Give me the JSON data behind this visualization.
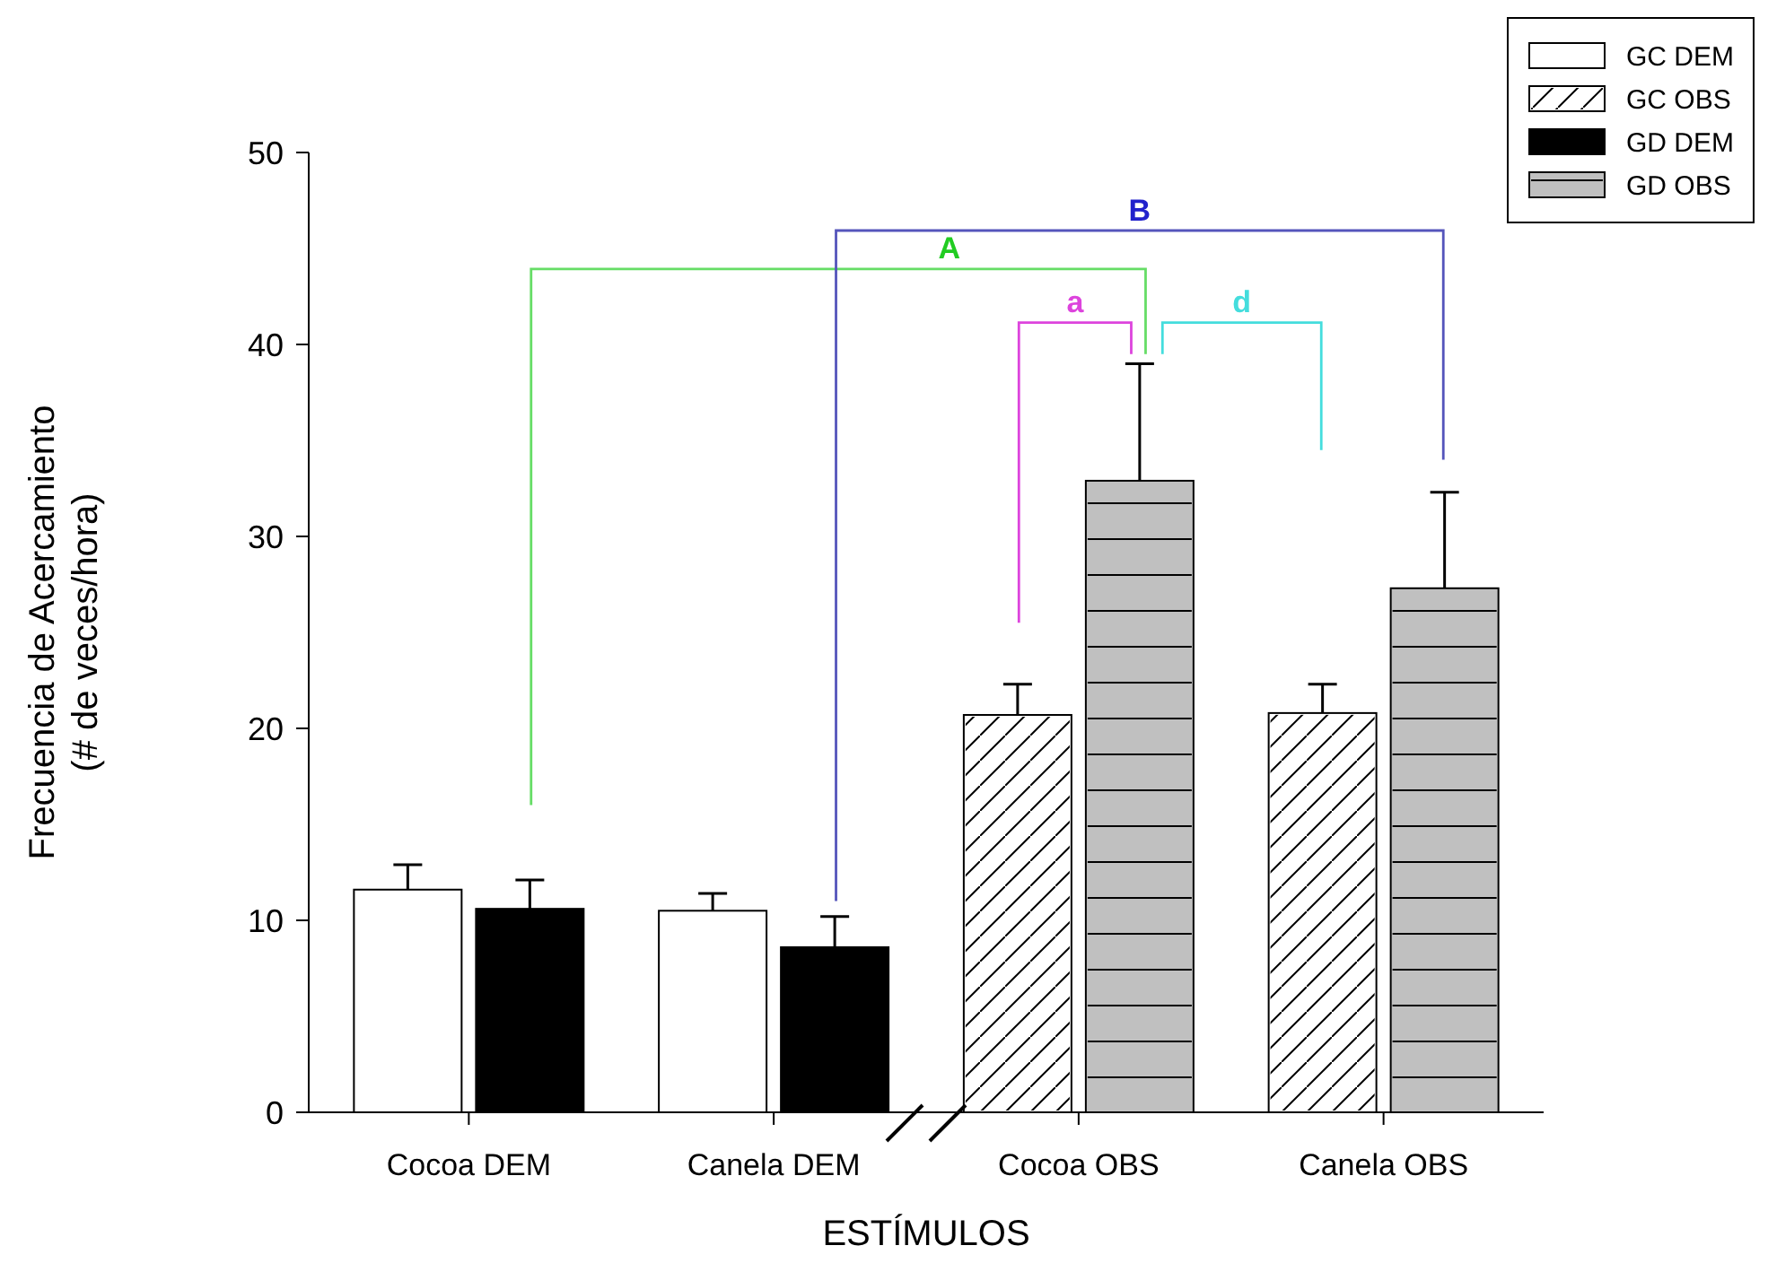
{
  "chart_data": {
    "type": "bar",
    "xlabel": "ESTÍMULOS",
    "ylabel": "Frecuencia de Acercamiento\n(# de veces/hora)",
    "categories": [
      "Cocoa DEM",
      "Canela DEM",
      "Cocoa OBS",
      "Canela OBS"
    ],
    "series": [
      {
        "name": "GC DEM",
        "color": "#ffffff",
        "values": [
          11.6,
          10.5,
          null,
          null
        ],
        "errors": [
          [
            11.6,
            12.9
          ],
          [
            10.5,
            11.4
          ],
          null,
          null
        ]
      },
      {
        "name": "GC OBS",
        "color": "#ffffff",
        "values": [
          null,
          null,
          20.7,
          20.8
        ],
        "errors": [
          null,
          null,
          [
            20.7,
            22.3
          ],
          [
            20.8,
            22.3
          ]
        ]
      },
      {
        "name": "GD DEM",
        "color": "#000000",
        "values": [
          10.6,
          8.6,
          null,
          null
        ],
        "errors": [
          [
            10.6,
            12.1
          ],
          [
            8.6,
            10.2
          ],
          null,
          null
        ]
      },
      {
        "name": "GD OBS",
        "color": "#c0c0c0",
        "values": [
          null,
          null,
          32.9,
          27.3
        ],
        "errors": [
          null,
          null,
          [
            32.9,
            39.0
          ],
          [
            27.3,
            32.3
          ]
        ]
      }
    ],
    "ylim": [
      0,
      50
    ],
    "yticks": [
      0,
      10,
      20,
      30,
      40,
      50
    ],
    "legend": "top right",
    "annotations": [
      "A",
      "B",
      "a",
      "d"
    ]
  }
}
